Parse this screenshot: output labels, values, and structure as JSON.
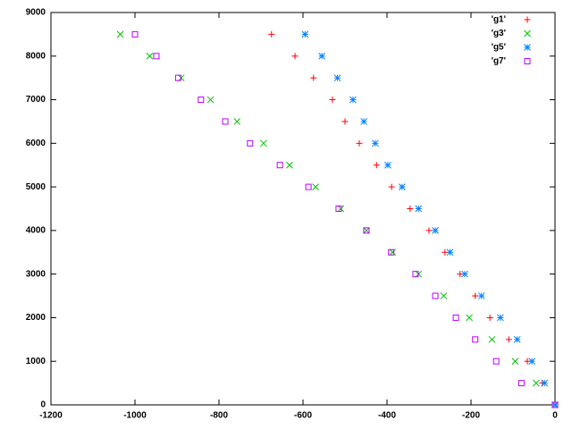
{
  "chart_data": {
    "type": "scatter",
    "legend": "top-right",
    "xlim": [
      -1200,
      0
    ],
    "ylim": [
      0,
      9000
    ],
    "xticks": [
      -1200,
      -1000,
      -800,
      -600,
      -400,
      -200,
      0
    ],
    "yticks": [
      0,
      1000,
      2000,
      3000,
      4000,
      5000,
      6000,
      7000,
      8000,
      9000
    ],
    "series": [
      {
        "name": "'g1'",
        "color": "#ff0000",
        "marker": "plus",
        "x": [
          0,
          -30,
          -66,
          -110,
          -155,
          -190,
          -226,
          -262,
          -300,
          -345,
          -389,
          -425,
          -466,
          -500,
          -530,
          -575,
          -619,
          -675
        ],
        "y": [
          0,
          500,
          1000,
          1500,
          2000,
          2500,
          3000,
          3500,
          4000,
          4500,
          5000,
          5500,
          6000,
          6500,
          7000,
          7500,
          8000,
          8500
        ]
      },
      {
        "name": "'g3'",
        "color": "#00c000",
        "marker": "cross",
        "x": [
          0,
          -45,
          -95,
          -150,
          -204,
          -265,
          -325,
          -387,
          -449,
          -510,
          -570,
          -632,
          -694,
          -757,
          -820,
          -890,
          -965,
          -1035
        ],
        "y": [
          0,
          500,
          1000,
          1500,
          2000,
          2500,
          3000,
          3500,
          4000,
          4500,
          5000,
          5500,
          6000,
          6500,
          7000,
          7500,
          8000,
          8500
        ]
      },
      {
        "name": "'g5'",
        "color": "#0080ff",
        "marker": "star",
        "x": [
          0,
          -25,
          -55,
          -90,
          -130,
          -175,
          -215,
          -250,
          -285,
          -325,
          -364,
          -398,
          -428,
          -455,
          -481,
          -518,
          -555,
          -595
        ],
        "y": [
          0,
          500,
          1000,
          1500,
          2000,
          2500,
          3000,
          3500,
          4000,
          4500,
          5000,
          5500,
          6000,
          6500,
          7000,
          7500,
          8000,
          8500
        ]
      },
      {
        "name": "'g7'",
        "color": "#c000ff",
        "marker": "square",
        "x": [
          0,
          -80,
          -140,
          -190,
          -236,
          -285,
          -332,
          -390,
          -449,
          -515,
          -587,
          -655,
          -726,
          -785,
          -843,
          -897,
          -949,
          -1000
        ],
        "y": [
          0,
          500,
          1000,
          1500,
          2000,
          2500,
          3000,
          3500,
          4000,
          4500,
          5000,
          5500,
          6000,
          6500,
          7000,
          7500,
          8000,
          8500
        ]
      }
    ]
  }
}
